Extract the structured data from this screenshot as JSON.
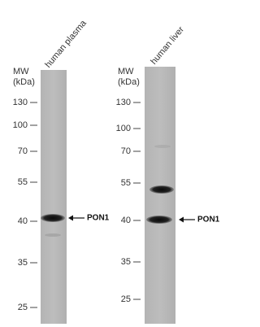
{
  "panels": [
    {
      "lane_label": "human plasma",
      "mw_label": "MW",
      "unit_label": "(kDa)",
      "markers": [
        130,
        100,
        70,
        55,
        40,
        35,
        25
      ],
      "band_label": "PON1"
    },
    {
      "lane_label": "human liver",
      "mw_label": "MW",
      "unit_label": "(kDa)",
      "markers": [
        130,
        100,
        70,
        55,
        40,
        35,
        25
      ],
      "band_label": "PON1"
    }
  ]
}
